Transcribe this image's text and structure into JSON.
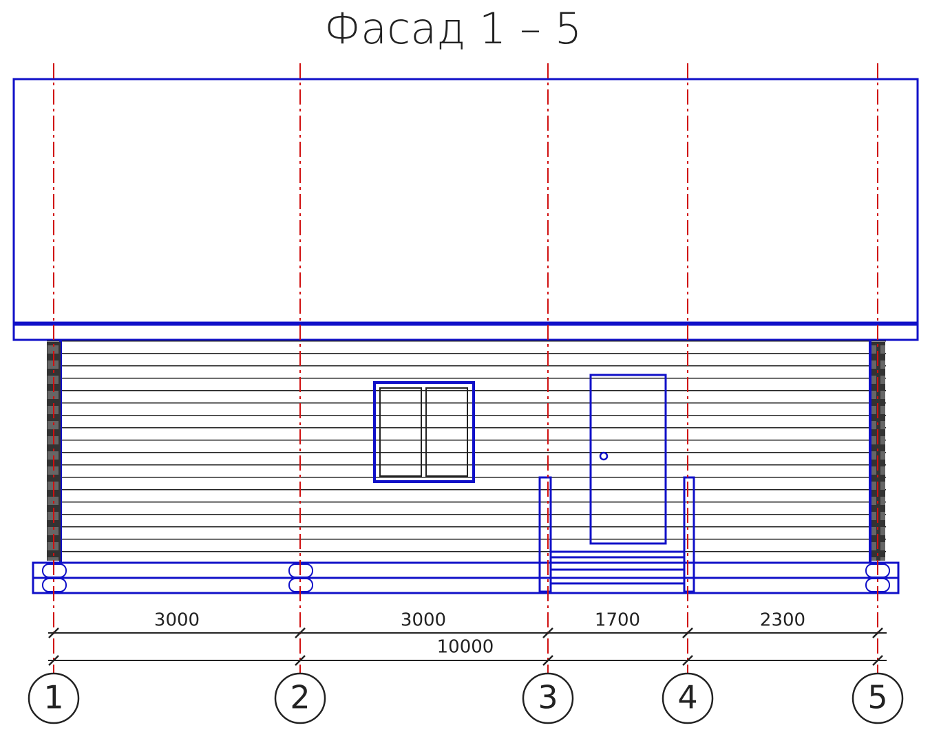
{
  "title": "Фасад 1 – 5",
  "dimensions": [
    "3000",
    "3000",
    "1700",
    "2300"
  ],
  "total_dimension": "10000",
  "axes": [
    "1",
    "2",
    "3",
    "4",
    "5"
  ]
}
